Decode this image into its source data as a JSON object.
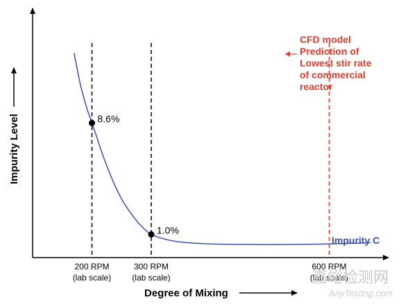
{
  "chart_data": {
    "type": "line",
    "xlabel": "Degree of Mixing",
    "ylabel": "Impurity Level",
    "x_ticks": [
      {
        "value": 200,
        "label": "200 RPM",
        "sub": "(lab scale)"
      },
      {
        "value": 300,
        "label": "300 RPM",
        "sub": "(lab scale)"
      },
      {
        "value": 600,
        "label": "600 RPM",
        "sub": "(lab scale)"
      }
    ],
    "xlim": [
      100,
      700
    ],
    "ylim": [
      0,
      1
    ],
    "series": [
      {
        "name": "Impurity C",
        "color": "#3a4fb0",
        "x": [
          170,
          180,
          190,
          200,
          210,
          220,
          235,
          250,
          265,
          280,
          300,
          330,
          360,
          400,
          450,
          500,
          550,
          600,
          650,
          670
        ],
        "y": [
          0.82,
          0.7,
          0.61,
          0.54,
          0.47,
          0.4,
          0.31,
          0.235,
          0.18,
          0.135,
          0.093,
          0.07,
          0.06,
          0.055,
          0.053,
          0.052,
          0.053,
          0.055,
          0.058,
          0.06
        ]
      }
    ],
    "points": [
      {
        "x": 200,
        "y": 0.54,
        "label": "8.6%"
      },
      {
        "x": 300,
        "y": 0.093,
        "label": "1.0%"
      }
    ],
    "reference_lines": [
      {
        "x": 200,
        "color": "#000000"
      },
      {
        "x": 300,
        "color": "#000000"
      },
      {
        "x": 600,
        "color": "#e8392a"
      }
    ],
    "annotation": {
      "lines": [
        "CFD model",
        "Prediction of",
        "Lowest stir rate",
        "of commercial",
        "reactor"
      ],
      "color": "#e8392a"
    },
    "grid": false
  },
  "watermark": {
    "chinese": "嘉峪检测网",
    "english": "AnyTesting.com"
  }
}
